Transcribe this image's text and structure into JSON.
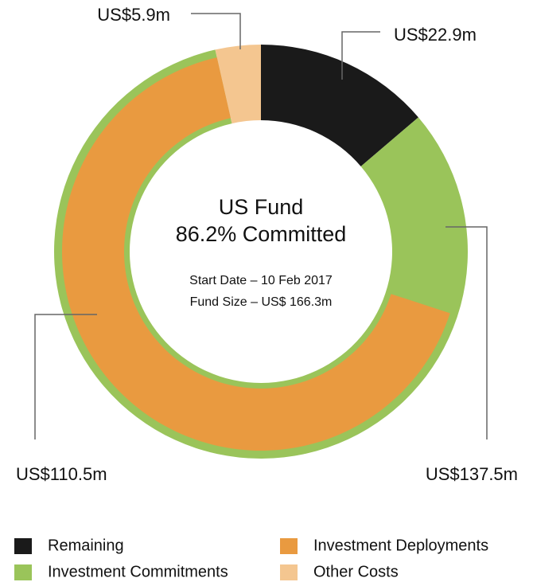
{
  "chart_data": {
    "type": "donut",
    "title": "US Fund",
    "subtitle": "86.2% Committed",
    "annotations": [
      "Start Date – 10 Feb 2017",
      "Fund Size – US$ 166.3m"
    ],
    "series": [
      {
        "name": "Remaining",
        "color": "#1a1a1a",
        "value": 22.9,
        "value_label": "US$22.9m"
      },
      {
        "name": "Investment Commitments",
        "color": "#9ac45a",
        "value": 137.5,
        "value_label": "US$137.5m"
      },
      {
        "name": "Other Costs",
        "color": "#f4c690",
        "value": 5.9,
        "value_label": "US$5.9m"
      },
      {
        "name": "Investment Deployments",
        "color": "#e99a40",
        "value": 110.5,
        "value_label": "US$110.5m",
        "within": "Investment Commitments"
      }
    ],
    "legend_order": [
      0,
      3,
      1,
      2
    ]
  }
}
